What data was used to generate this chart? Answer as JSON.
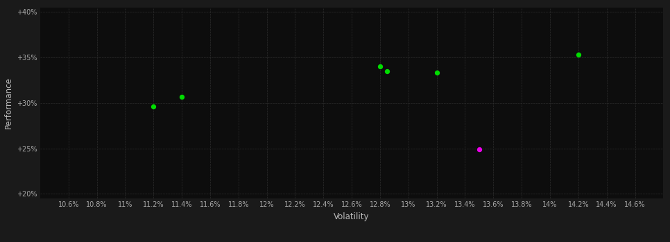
{
  "background_color": "#1a1a1a",
  "grid_color": "#2e2e2e",
  "plot_bg_color": "#0d0d0d",
  "xlabel": "Volatility",
  "ylabel": "Performance",
  "xlim": [
    0.104,
    0.148
  ],
  "ylim": [
    0.195,
    0.405
  ],
  "xtick_values": [
    0.106,
    0.108,
    0.11,
    0.112,
    0.114,
    0.116,
    0.118,
    0.12,
    0.122,
    0.124,
    0.126,
    0.128,
    0.13,
    0.132,
    0.134,
    0.136,
    0.138,
    0.14,
    0.142,
    0.144,
    0.146
  ],
  "xtick_labels": [
    "10.6%",
    "10.8%",
    "11%",
    "11.2%",
    "11.4%",
    "11.6%",
    "11.8%",
    "12%",
    "12.2%",
    "12.4%",
    "12.6%",
    "12.8%",
    "13%",
    "13.2%",
    "13.4%",
    "13.6%",
    "13.8%",
    "14%",
    "14.2%",
    "14.4%",
    "14.6%"
  ],
  "ytick_values": [
    0.2,
    0.25,
    0.3,
    0.35,
    0.4
  ],
  "ytick_labels": [
    "+20%",
    "+25%",
    "+30%",
    "+35%",
    "+40%"
  ],
  "points_green": [
    [
      0.112,
      0.296
    ],
    [
      0.114,
      0.307
    ],
    [
      0.128,
      0.34
    ],
    [
      0.1285,
      0.335
    ],
    [
      0.132,
      0.333
    ],
    [
      0.142,
      0.353
    ]
  ],
  "points_magenta": [
    [
      0.135,
      0.249
    ]
  ],
  "point_color_green": "#00dd00",
  "point_color_magenta": "#ee00ee",
  "point_size": 18,
  "xlabel_color": "#bbbbbb",
  "ylabel_color": "#bbbbbb",
  "tick_color": "#aaaaaa",
  "tick_fontsize": 7,
  "label_fontsize": 8.5
}
